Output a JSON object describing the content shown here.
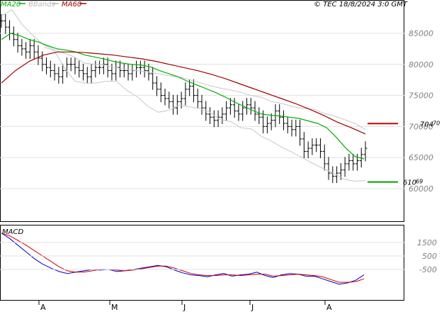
{
  "header": {
    "legend": [
      {
        "label": "MA20",
        "color": "#00b000"
      },
      {
        "label": "BBands",
        "color": "#b8b8b8"
      },
      {
        "label": "MA60",
        "color": "#a00000"
      }
    ],
    "copyright": "© TEC 18/8/2024 3:0 GMT"
  },
  "chart_data": [
    {
      "type": "ohlc",
      "ylim": [
        55000,
        90000
      ],
      "ytick_labels": [
        "85000",
        "80000",
        "75000",
        "70000",
        "65000",
        "60000"
      ],
      "ytick_values": [
        85000,
        80000,
        75000,
        70000,
        65000,
        60000
      ],
      "xlabels": [
        "A",
        "M",
        "J",
        "J",
        "A"
      ],
      "series": [
        {
          "name": "MA20",
          "color": "#00b000",
          "values": [
            84000,
            85000,
            84600,
            84000,
            83600,
            83000,
            82500,
            82300,
            82000,
            81500,
            81200,
            80900,
            80500,
            80200,
            80000,
            79900,
            79600,
            79000,
            78500,
            78000,
            77300,
            76700,
            76100,
            75500,
            74800,
            74000,
            73300,
            72600,
            72000,
            71800,
            71700,
            71500,
            71300,
            70900,
            70500,
            69800,
            68300,
            66600,
            65200,
            64800
          ]
        },
        {
          "name": "MA60",
          "color": "#a00000",
          "values": [
            77000,
            79000,
            80500,
            81500,
            82000,
            82000,
            81900,
            81700,
            81500,
            81200,
            80900,
            80500,
            80000,
            79500,
            79000,
            78400,
            77700,
            76900,
            76100,
            75300,
            74500,
            73700,
            72800,
            71800,
            70700,
            69800,
            68800
          ]
        },
        {
          "name": "BBands upper",
          "color": "#c8c8c8",
          "values": [
            87800,
            88800,
            86400,
            84700,
            83200,
            82400,
            81800,
            81200,
            80200,
            80000,
            79900,
            79500,
            79200,
            79000,
            78800,
            78500,
            78200,
            78000,
            77600,
            77100,
            76600,
            76200,
            75900,
            75500,
            75000,
            74700,
            74000,
            73700,
            73200,
            72900,
            72800,
            72100,
            71700,
            71100,
            70500,
            69500
          ]
        },
        {
          "name": "BBands lower",
          "color": "#c8c8c8",
          "values": [
            82800,
            82200,
            79400,
            77300,
            77000,
            77000,
            77300,
            77300,
            75800,
            74800,
            73300,
            72300,
            72600,
            73400,
            73200,
            72900,
            72300,
            71100,
            70800,
            69800,
            69600,
            68400,
            67600,
            66600,
            65800,
            64900,
            64000,
            63200,
            62400,
            61500,
            61200,
            61300
          ]
        }
      ],
      "ohlc_closes": [
        87000,
        86000,
        85000,
        84000,
        83000,
        82500,
        82000,
        83000,
        82000,
        81000,
        80000,
        79500,
        79000,
        78500,
        78000,
        79000,
        80000,
        80000,
        79500,
        79000,
        78500,
        78000,
        79000,
        79500,
        79500,
        80000,
        79000,
        78500,
        79500,
        79000,
        79000,
        78500,
        79000,
        79500,
        79500,
        79000,
        78500,
        77000,
        76000,
        75000,
        74500,
        74000,
        73000,
        74000,
        74500,
        76000,
        76500,
        75000,
        74000,
        73000,
        72000,
        71500,
        71000,
        71500,
        72000,
        73000,
        73500,
        72500,
        72000,
        73000,
        73500,
        73000,
        72000,
        71500,
        70000,
        70500,
        71000,
        72500,
        71500,
        70500,
        70000,
        69500,
        70000,
        68000,
        66000,
        66500,
        67000,
        67000,
        66000,
        64000,
        62500,
        62000,
        62500,
        63000,
        64000,
        64500,
        64000,
        64500,
        65500,
        66500
      ]
    },
    {
      "type": "line",
      "title": "MACD",
      "ytick_labels": [
        "1500",
        "500",
        "-500"
      ],
      "ytick_values": [
        1500,
        500,
        -500
      ],
      "series": [
        {
          "name": "MACD",
          "color": "#0000cc",
          "values": [
            2200,
            1800,
            1300,
            800,
            300,
            -100,
            -400,
            -650,
            -800,
            -700,
            -600,
            -500,
            -550,
            -500,
            -650,
            -600,
            -500,
            -400,
            -300,
            -200,
            -300,
            -550,
            -750,
            -900,
            -950,
            -1050,
            -900,
            -800,
            -1000,
            -900,
            -850,
            -700,
            -950,
            -1100,
            -900,
            -800,
            -850,
            -1000,
            -1000,
            -1200,
            -1400,
            -1600,
            -1500,
            -1300,
            -900
          ]
        },
        {
          "name": "Signal",
          "color": "#cc0000",
          "values": [
            2200,
            2000,
            1650,
            1300,
            900,
            500,
            100,
            -300,
            -600,
            -700,
            -700,
            -600,
            -500,
            -500,
            -550,
            -600,
            -550,
            -450,
            -350,
            -250,
            -250,
            -400,
            -600,
            -800,
            -900,
            -950,
            -950,
            -900,
            -900,
            -950,
            -900,
            -850,
            -850,
            -1000,
            -950,
            -900,
            -850,
            -900,
            -950,
            -1050,
            -1250,
            -1450,
            -1450,
            -1400,
            -1200
          ]
        }
      ]
    }
  ],
  "levels": [
    {
      "label_main": "704",
      "label_small": "70",
      "color": "#cc0000",
      "value": 70470
    },
    {
      "label_main": "610",
      "label_small": "69",
      "color": "#00a000",
      "value": 61069
    }
  ]
}
